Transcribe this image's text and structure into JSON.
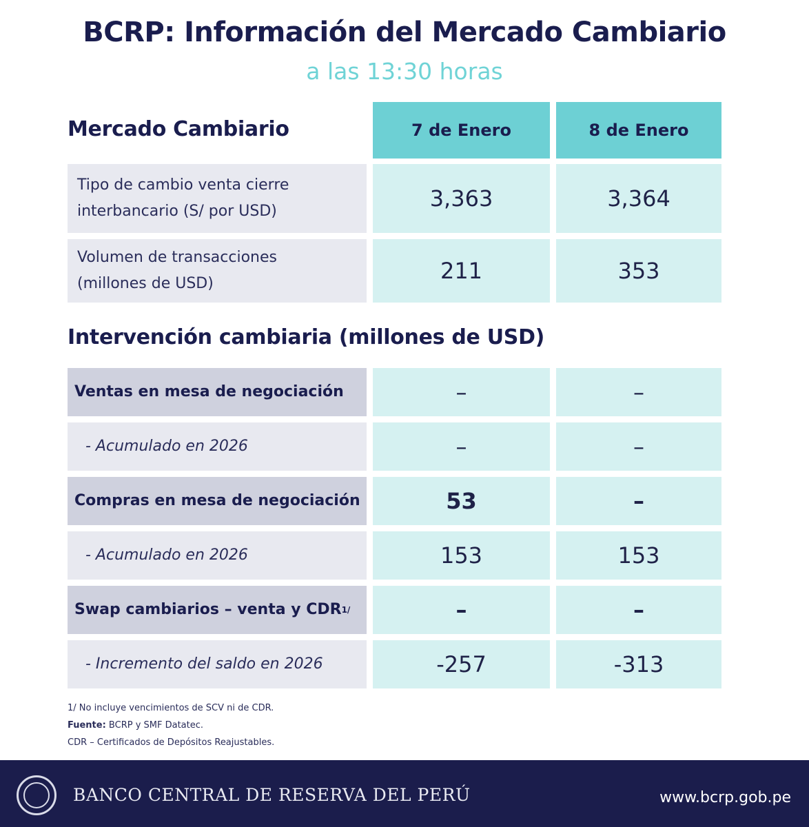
{
  "header": {
    "title": "BCRP: Información del Mercado Cambiario",
    "subtitle": "a las 13:30 horas"
  },
  "mercado": {
    "section_title": "Mercado Cambiario",
    "columns": [
      "7 de Enero",
      "8 de Enero"
    ],
    "rows": [
      {
        "label_line1": "Tipo de cambio venta cierre",
        "label_line2": "interbancario (S/ por USD)",
        "values": [
          "3,363",
          "3,364"
        ]
      },
      {
        "label_line1": "Volumen de transacciones",
        "label_line2": "(millones de USD)",
        "values": [
          "211",
          "353"
        ]
      }
    ]
  },
  "intervencion": {
    "section_title": "Intervención cambiaria (millones de USD)",
    "rows": [
      {
        "label": "Ventas en mesa de negociación",
        "values": [
          "–",
          "–"
        ]
      },
      {
        "label": "-  Acumulado en 2026",
        "values": [
          "–",
          "–"
        ]
      },
      {
        "label": "Compras en mesa de negociación",
        "values": [
          "53",
          "–"
        ]
      },
      {
        "label": "-  Acumulado en 2026",
        "values": [
          "153",
          "153"
        ]
      },
      {
        "label": "Swap cambiarios – venta y CDR",
        "label_sup": "1/",
        "values": [
          "–",
          "–"
        ]
      },
      {
        "label": "-  Incremento del saldo en 2026",
        "values": [
          "-257",
          "-313"
        ]
      }
    ]
  },
  "notes": {
    "note1": "1/ No incluye vencimientos de SCV ni de CDR.",
    "fuente_label": "Fuente:",
    "fuente_text": " BCRP y SMF Datatec.",
    "note3": "CDR – Certificados de Depósitos Reajustables."
  },
  "footer": {
    "bank_name": "BANCO CENTRAL DE RESERVA DEL PERÚ",
    "url": "www.bcrp.gob.pe",
    "logo_icon": "bcrp-seal-icon"
  }
}
